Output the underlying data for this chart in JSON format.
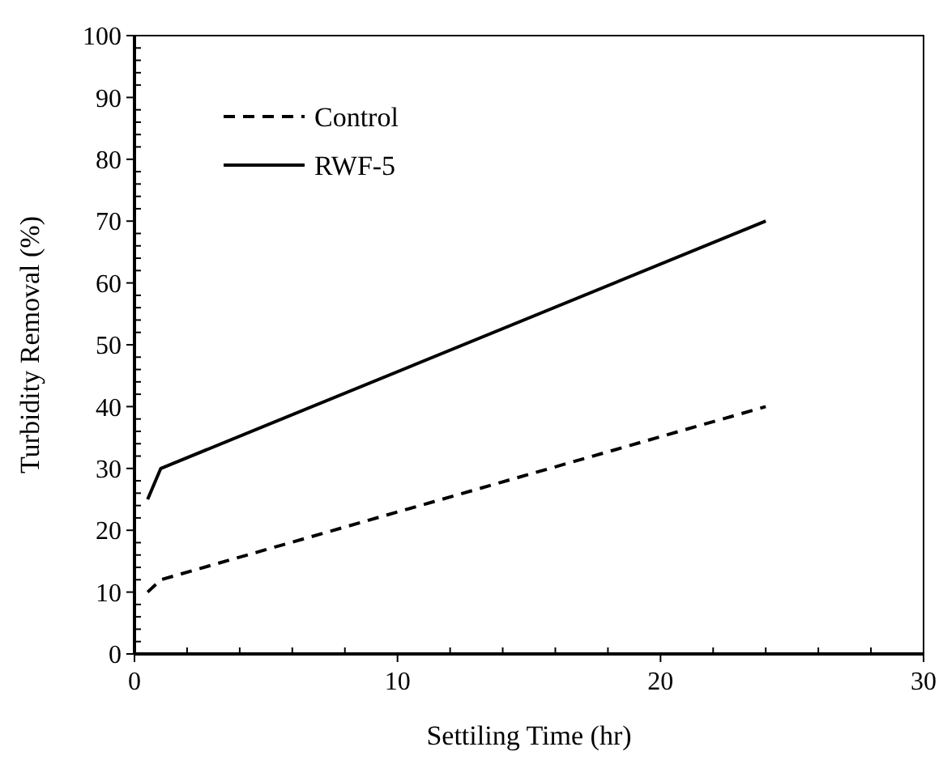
{
  "chart_data": {
    "type": "line",
    "xlabel": "Settiling Time (hr)",
    "ylabel": "Turbidity Removal (%)",
    "xlim": [
      0,
      30
    ],
    "xticks": [
      0,
      10,
      20,
      30
    ],
    "ylim": [
      0,
      100
    ],
    "yticks": [
      0,
      10,
      20,
      30,
      40,
      50,
      60,
      70,
      80,
      90,
      100
    ],
    "legend": "top left",
    "grid": false,
    "marker": "none",
    "series": [
      {
        "name": "Control",
        "color": "#000000",
        "line_style": "dashed",
        "x": [
          0.5,
          1,
          24
        ],
        "values": [
          10,
          12,
          40
        ]
      },
      {
        "name": "RWF-5",
        "color": "#000000",
        "line_style": "solid",
        "x": [
          0.5,
          1,
          24
        ],
        "values": [
          25,
          30,
          70
        ]
      }
    ]
  }
}
